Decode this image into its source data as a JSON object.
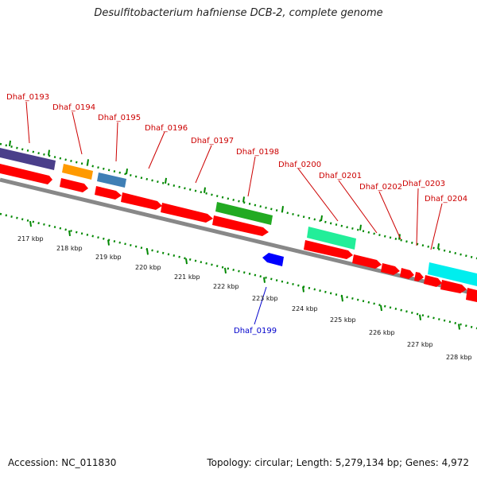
{
  "title": "Desulfitobacterium hafniense DCB-2, complete genome",
  "footer": {
    "accession": "Accession: NC_011830",
    "topology": "Topology: circular; Length: 5,279,134 bp; Genes: 4,972"
  },
  "colors": {
    "forward_gene": "#ff0000",
    "reverse_gene": "#0000ff",
    "backbone": "#888888",
    "ticks": "#008800",
    "label_forward": "#cc0000",
    "label_reverse": "#0000cc"
  },
  "kbp_labels": [
    "217 kbp",
    "218 kbp",
    "219 kbp",
    "220 kbp",
    "221 kbp",
    "222 kbp",
    "223 kbp",
    "224 kbp",
    "225 kbp",
    "226 kbp",
    "227 kbp",
    "228 kbp"
  ],
  "gene_labels": [
    {
      "name": "Dhaf_0193",
      "strand": "forward"
    },
    {
      "name": "Dhaf_0194",
      "strand": "forward"
    },
    {
      "name": "Dhaf_0195",
      "strand": "forward"
    },
    {
      "name": "Dhaf_0196",
      "strand": "forward"
    },
    {
      "name": "Dhaf_0197",
      "strand": "forward"
    },
    {
      "name": "Dhaf_0198",
      "strand": "forward"
    },
    {
      "name": "Dhaf_0199",
      "strand": "reverse"
    },
    {
      "name": "Dhaf_0200",
      "strand": "forward"
    },
    {
      "name": "Dhaf_0201",
      "strand": "forward"
    },
    {
      "name": "Dhaf_0202",
      "strand": "forward"
    },
    {
      "name": "Dhaf_0203",
      "strand": "forward"
    },
    {
      "name": "Dhaf_0204",
      "strand": "forward"
    }
  ]
}
